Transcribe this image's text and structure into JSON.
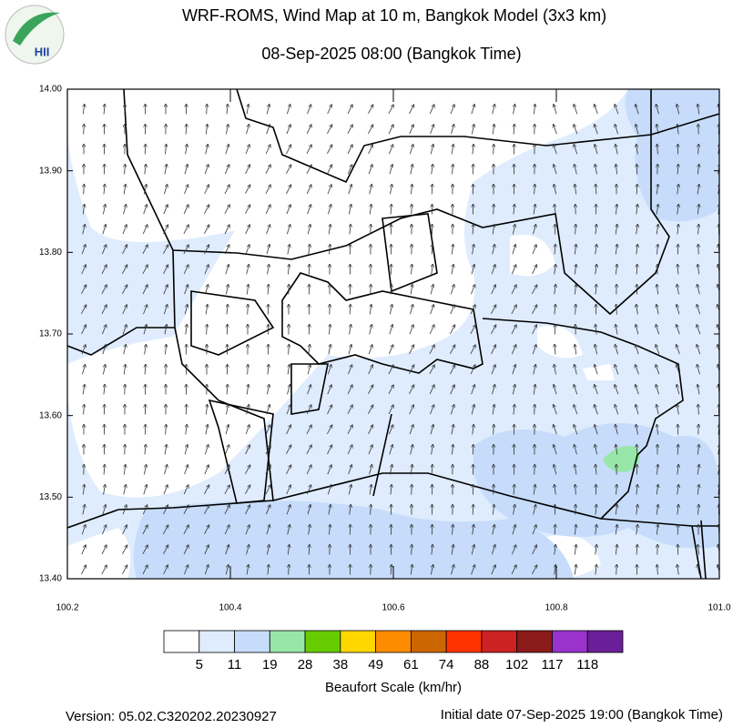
{
  "header": {
    "title": "WRF-ROMS, Wind Map at 10 m, Bangkok Model (3x3 km)",
    "subtitle": "08-Sep-2025 08:00 (Bangkok Time)",
    "logo_text": "HII"
  },
  "map": {
    "lat_ticks": [
      {
        "value": 14.0,
        "label": "14.00"
      },
      {
        "value": 13.9,
        "label": "13.90"
      },
      {
        "value": 13.8,
        "label": "13.80"
      },
      {
        "value": 13.7,
        "label": "13.70"
      },
      {
        "value": 13.6,
        "label": "13.60"
      },
      {
        "value": 13.5,
        "label": "13.50"
      },
      {
        "value": 13.4,
        "label": "13.40"
      }
    ],
    "lon_ticks": [
      {
        "value": 100.2,
        "label": "100.2"
      },
      {
        "value": 100.4,
        "label": "100.4"
      },
      {
        "value": 100.6,
        "label": "100.6"
      },
      {
        "value": 100.8,
        "label": "100.8"
      },
      {
        "value": 101.0,
        "label": "101.0"
      }
    ],
    "lat_range": [
      13.4,
      14.0
    ],
    "lon_range": [
      100.2,
      101.0
    ]
  },
  "colorbar": {
    "title": "Beaufort Scale (km/hr)",
    "levels": [
      5,
      11,
      19,
      28,
      38,
      49,
      61,
      74,
      88,
      102,
      117,
      118
    ],
    "colors": [
      "#ffffff",
      "#dfecfd",
      "#c6dcfa",
      "#99e6a9",
      "#66cc00",
      "#ffd700",
      "#ff8c00",
      "#cc6600",
      "#ff3300",
      "#cc2222",
      "#8b1a1a",
      "#9933cc",
      "#6a1f99"
    ]
  },
  "footer": {
    "version": "Version: 05.02.C320202.20230927",
    "initial": "Initial date 07-Sep-2025 19:00 (Bangkok Time)"
  }
}
